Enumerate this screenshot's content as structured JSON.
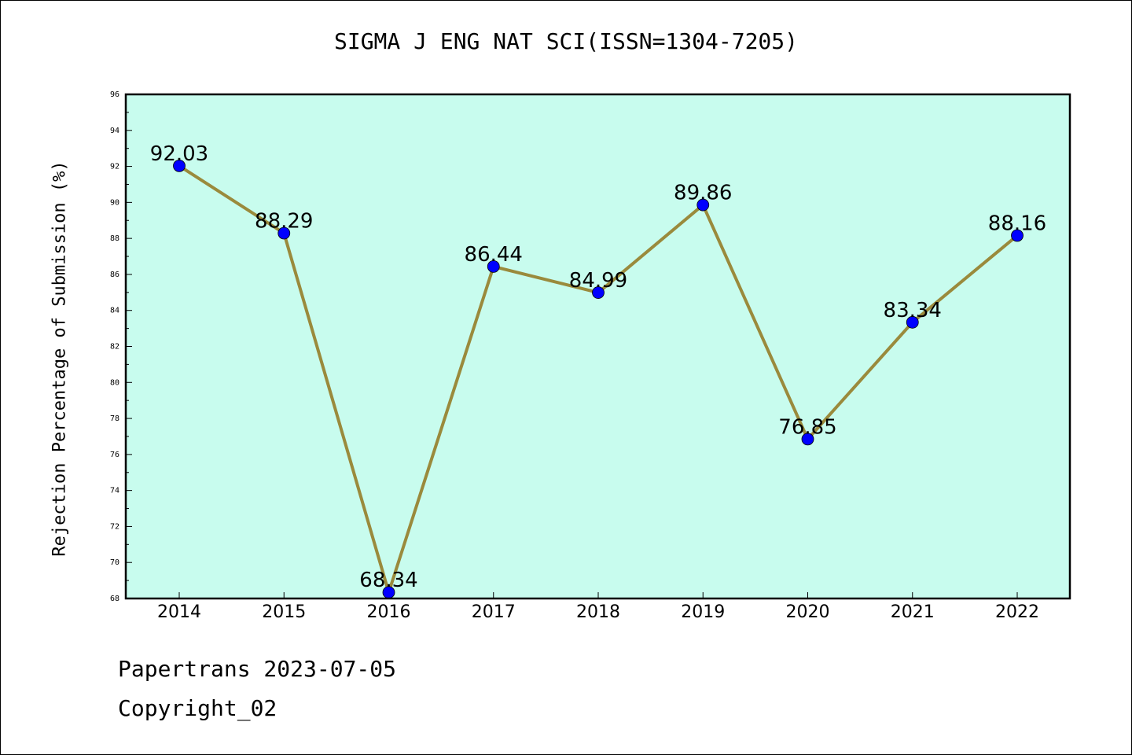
{
  "chart_data": {
    "type": "line",
    "title": "SIGMA J ENG NAT SCI(ISSN=1304-7205)",
    "xlabel": "",
    "ylabel": "Rejection Percentage of Submission (%)",
    "categories": [
      "2014",
      "2015",
      "2016",
      "2017",
      "2018",
      "2019",
      "2020",
      "2021",
      "2022"
    ],
    "series": [
      {
        "values": [
          92.03,
          88.29,
          68.34,
          86.44,
          84.99,
          89.86,
          76.85,
          83.34,
          88.16
        ]
      }
    ],
    "data_labels": [
      "92.03",
      "88.29",
      "68.34",
      "86.44",
      "84.99",
      "89.86",
      "76.85",
      "83.34",
      "88.16"
    ],
    "ylim": [
      68,
      96
    ],
    "yticks": [
      68,
      70,
      72,
      74,
      76,
      78,
      80,
      82,
      84,
      86,
      88,
      90,
      92,
      94,
      96
    ],
    "grid": false,
    "colors": {
      "plot_background": "#c8fcee",
      "line": "#9a8a3c",
      "marker": "#0000ff"
    }
  },
  "footer": {
    "line1": "Papertrans 2023-07-05",
    "line2": "Copyright_02"
  }
}
